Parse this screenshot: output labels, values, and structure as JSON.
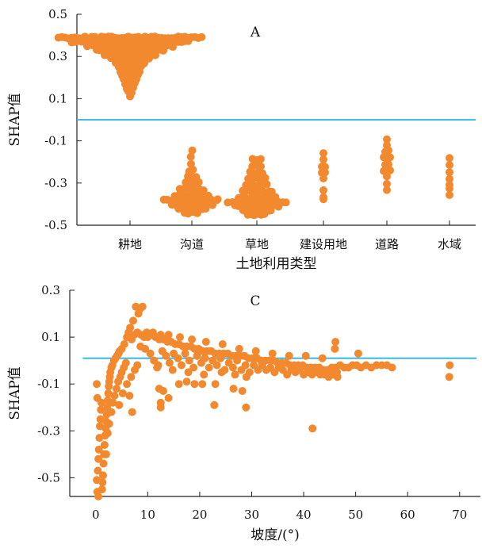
{
  "colors": {
    "points": "#F2892F",
    "reference_line": "#29B3E6",
    "axis": "#222222"
  },
  "chart_data": [
    {
      "type": "scatter",
      "panel_label": "A",
      "title": "",
      "xlabel": "土地利用类型",
      "ylabel": "SHAP值",
      "categories": [
        "耕地",
        "沟道",
        "草地",
        "建设用地",
        "道路",
        "水域"
      ],
      "yticks": [
        "0.5",
        "0.3",
        "0.1",
        "-0.1",
        "-0.3",
        "-0.5"
      ],
      "ylim": [
        -0.5,
        0.5
      ],
      "reference_line_y": 0.0,
      "grid": false,
      "series": [
        {
          "category": "耕地",
          "x_spread": 1.0,
          "y_range": [
            0.1,
            0.39
          ],
          "points": [
            [
              0.39,
              44
            ],
            [
              0.37,
              36
            ],
            [
              0.35,
              28
            ],
            [
              0.33,
              22
            ],
            [
              0.31,
              17
            ],
            [
              0.29,
              13
            ],
            [
              0.27,
              10
            ],
            [
              0.25,
              8
            ],
            [
              0.23,
              7
            ],
            [
              0.21,
              6
            ],
            [
              0.19,
              5
            ],
            [
              0.17,
              4
            ],
            [
              0.15,
              3
            ],
            [
              0.13,
              2
            ],
            [
              0.11,
              1
            ]
          ]
        },
        {
          "category": "沟道",
          "x_spread": 0.5,
          "y_range": [
            -0.45,
            -0.14
          ],
          "points": [
            [
              -0.15,
              1
            ],
            [
              -0.18,
              1
            ],
            [
              -0.21,
              1
            ],
            [
              -0.24,
              2
            ],
            [
              -0.27,
              3
            ],
            [
              -0.3,
              5
            ],
            [
              -0.33,
              8
            ],
            [
              -0.36,
              12
            ],
            [
              -0.38,
              18
            ],
            [
              -0.4,
              14
            ],
            [
              -0.42,
              9
            ],
            [
              -0.44,
              5
            ]
          ]
        },
        {
          "category": "草地",
          "x_spread": 0.55,
          "y_range": [
            -0.45,
            -0.19
          ],
          "points": [
            [
              -0.19,
              3
            ],
            [
              -0.22,
              4
            ],
            [
              -0.25,
              5
            ],
            [
              -0.28,
              6
            ],
            [
              -0.31,
              8
            ],
            [
              -0.34,
              10
            ],
            [
              -0.37,
              13
            ],
            [
              -0.39,
              19
            ],
            [
              -0.41,
              14
            ],
            [
              -0.43,
              10
            ],
            [
              -0.45,
              6
            ]
          ]
        },
        {
          "category": "建设用地",
          "x_spread": 0.1,
          "y_range": [
            -0.38,
            -0.16
          ],
          "points": [
            [
              -0.16,
              1
            ],
            [
              -0.19,
              1
            ],
            [
              -0.22,
              2
            ],
            [
              -0.25,
              2
            ],
            [
              -0.28,
              1
            ],
            [
              -0.33,
              1
            ],
            [
              -0.37,
              1
            ],
            [
              -0.38,
              1
            ]
          ]
        },
        {
          "category": "道路",
          "x_spread": 0.28,
          "y_range": [
            -0.34,
            -0.09
          ],
          "points": [
            [
              -0.09,
              1
            ],
            [
              -0.12,
              1
            ],
            [
              -0.15,
              2
            ],
            [
              -0.18,
              3
            ],
            [
              -0.21,
              2
            ],
            [
              -0.24,
              3
            ],
            [
              -0.27,
              1
            ],
            [
              -0.3,
              1
            ],
            [
              -0.33,
              1
            ]
          ]
        },
        {
          "category": "水域",
          "x_spread": 0.1,
          "y_range": [
            -0.36,
            -0.18
          ],
          "points": [
            [
              -0.18,
              1
            ],
            [
              -0.21,
              1
            ],
            [
              -0.25,
              1
            ],
            [
              -0.28,
              1
            ],
            [
              -0.31,
              1
            ],
            [
              -0.33,
              1
            ],
            [
              -0.36,
              1
            ]
          ]
        }
      ]
    },
    {
      "type": "scatter",
      "panel_label": "C",
      "title": "",
      "xlabel": "坡度/(°)",
      "ylabel": "SHAP值",
      "xlim": [
        -5,
        74
      ],
      "ylim": [
        -0.58,
        0.3
      ],
      "xticks": [
        "0",
        "10",
        "20",
        "30",
        "40",
        "50",
        "60",
        "70"
      ],
      "yticks": [
        "0.3",
        "0.1",
        "-0.1",
        "-0.3",
        "-0.5"
      ],
      "reference_line_y": 0.01,
      "grid": false,
      "points": [
        [
          0.2,
          -0.51
        ],
        [
          0.4,
          -0.47
        ],
        [
          0.5,
          -0.42
        ],
        [
          0.6,
          -0.38
        ],
        [
          0.7,
          -0.33
        ],
        [
          0.8,
          -0.28
        ],
        [
          0.9,
          -0.25
        ],
        [
          1.0,
          -0.21
        ],
        [
          1.1,
          -0.18
        ],
        [
          1.2,
          -0.55
        ],
        [
          1.3,
          -0.52
        ],
        [
          1.4,
          -0.49
        ],
        [
          1.5,
          -0.44
        ],
        [
          1.6,
          -0.4
        ],
        [
          1.7,
          -0.36
        ],
        [
          1.8,
          -0.32
        ],
        [
          1.9,
          -0.29
        ],
        [
          2.0,
          -0.26
        ],
        [
          2.1,
          -0.23
        ],
        [
          2.2,
          -0.2
        ],
        [
          2.3,
          -0.17
        ],
        [
          2.4,
          -0.14
        ],
        [
          2.5,
          -0.11
        ],
        [
          2.6,
          -0.09
        ],
        [
          2.7,
          -0.07
        ],
        [
          2.8,
          -0.05
        ],
        [
          3.0,
          -0.03
        ],
        [
          3.2,
          -0.02
        ],
        [
          3.5,
          0.0
        ],
        [
          3.8,
          0.01
        ],
        [
          4.1,
          0.02
        ],
        [
          4.4,
          0.03
        ],
        [
          0.2,
          -0.1
        ],
        [
          0.3,
          -0.16
        ],
        [
          0.5,
          -0.58
        ],
        [
          0.3,
          -0.56
        ],
        [
          2.0,
          -0.4
        ],
        [
          2.3,
          -0.31
        ],
        [
          2.6,
          -0.27
        ],
        [
          3.0,
          -0.22
        ],
        [
          3.3,
          -0.18
        ],
        [
          3.6,
          -0.15
        ],
        [
          4.0,
          -0.12
        ],
        [
          4.3,
          -0.09
        ],
        [
          4.7,
          -0.07
        ],
        [
          5.0,
          -0.05
        ],
        [
          5.4,
          -0.03
        ],
        [
          5.8,
          -0.01
        ],
        [
          4.5,
          -0.19
        ],
        [
          5.2,
          -0.14
        ],
        [
          6.0,
          -0.1
        ],
        [
          6.5,
          -0.15
        ],
        [
          7.0,
          -0.22
        ],
        [
          6.8,
          -0.07
        ],
        [
          7.5,
          -0.04
        ],
        [
          8.0,
          -0.02
        ],
        [
          7.7,
          0.23
        ],
        [
          8.5,
          0.22
        ],
        [
          9.0,
          0.23
        ],
        [
          8.2,
          0.2
        ],
        [
          7.2,
          0.17
        ],
        [
          6.6,
          0.14
        ],
        [
          6.3,
          0.12
        ],
        [
          6.0,
          0.1
        ],
        [
          5.5,
          0.07
        ],
        [
          5.0,
          0.05
        ],
        [
          4.6,
          0.04
        ],
        [
          6.9,
          0.09
        ],
        [
          7.4,
          0.11
        ],
        [
          8.0,
          0.12
        ],
        [
          8.7,
          0.11
        ],
        [
          9.3,
          0.1
        ],
        [
          10.0,
          0.1
        ],
        [
          10.8,
          0.11
        ],
        [
          11.5,
          0.1
        ],
        [
          12.2,
          0.09
        ],
        [
          13.0,
          0.09
        ],
        [
          13.8,
          0.08
        ],
        [
          14.5,
          0.08
        ],
        [
          15.3,
          0.07
        ],
        [
          16.0,
          0.07
        ],
        [
          16.8,
          0.06
        ],
        [
          17.5,
          0.06
        ],
        [
          18.3,
          0.06
        ],
        [
          19.0,
          0.05
        ],
        [
          19.8,
          0.05
        ],
        [
          20.6,
          0.04
        ],
        [
          21.4,
          0.04
        ],
        [
          22.2,
          0.04
        ],
        [
          23.0,
          0.03
        ],
        [
          23.8,
          0.03
        ],
        [
          24.6,
          0.03
        ],
        [
          25.4,
          0.03
        ],
        [
          26.2,
          0.02
        ],
        [
          27.0,
          0.02
        ],
        [
          27.8,
          0.02
        ],
        [
          28.6,
          0.02
        ],
        [
          29.4,
          0.01
        ],
        [
          30.2,
          0.01
        ],
        [
          31.0,
          0.01
        ],
        [
          31.8,
          0.0
        ],
        [
          32.6,
          0.0
        ],
        [
          33.4,
          0.0
        ],
        [
          34.2,
          0.0
        ],
        [
          35.0,
          -0.01
        ],
        [
          35.8,
          -0.01
        ],
        [
          36.6,
          -0.01
        ],
        [
          37.4,
          -0.02
        ],
        [
          38.2,
          -0.02
        ],
        [
          39.0,
          -0.02
        ],
        [
          39.8,
          -0.02
        ],
        [
          40.6,
          -0.03
        ],
        [
          41.4,
          -0.03
        ],
        [
          42.2,
          -0.03
        ],
        [
          43.0,
          -0.03
        ],
        [
          43.8,
          -0.04
        ],
        [
          44.6,
          -0.04
        ],
        [
          45.4,
          -0.03
        ],
        [
          46.2,
          -0.03
        ],
        [
          47.0,
          -0.02
        ],
        [
          47.8,
          -0.03
        ],
        [
          48.6,
          -0.03
        ],
        [
          49.4,
          -0.02
        ],
        [
          50.2,
          -0.02
        ],
        [
          51.0,
          -0.03
        ],
        [
          52.0,
          -0.02
        ],
        [
          53.0,
          -0.03
        ],
        [
          54.0,
          -0.02
        ],
        [
          55.0,
          -0.02
        ],
        [
          56.0,
          -0.02
        ],
        [
          57.0,
          -0.03
        ],
        [
          9.5,
          0.05
        ],
        [
          10.5,
          0.03
        ],
        [
          11.2,
          0.0
        ],
        [
          12.0,
          -0.02
        ],
        [
          12.8,
          0.04
        ],
        [
          13.5,
          0.02
        ],
        [
          14.2,
          -0.01
        ],
        [
          15.0,
          0.03
        ],
        [
          15.8,
          0.01
        ],
        [
          16.5,
          -0.02
        ],
        [
          17.2,
          0.03
        ],
        [
          18.0,
          0.0
        ],
        [
          18.8,
          -0.03
        ],
        [
          19.5,
          0.02
        ],
        [
          20.3,
          -0.01
        ],
        [
          21.0,
          0.01
        ],
        [
          21.8,
          -0.03
        ],
        [
          22.5,
          0.0
        ],
        [
          23.3,
          -0.02
        ],
        [
          24.0,
          0.01
        ],
        [
          24.8,
          -0.04
        ],
        [
          25.6,
          -0.01
        ],
        [
          26.4,
          -0.03
        ],
        [
          27.2,
          0.0
        ],
        [
          28.0,
          -0.04
        ],
        [
          28.8,
          -0.02
        ],
        [
          29.6,
          -0.05
        ],
        [
          30.4,
          -0.02
        ],
        [
          31.2,
          -0.04
        ],
        [
          32.0,
          -0.02
        ],
        [
          32.8,
          -0.04
        ],
        [
          33.6,
          -0.03
        ],
        [
          34.4,
          -0.05
        ],
        [
          35.2,
          -0.03
        ],
        [
          36.0,
          -0.04
        ],
        [
          36.8,
          -0.06
        ],
        [
          37.6,
          -0.04
        ],
        [
          38.4,
          -0.05
        ],
        [
          39.2,
          -0.04
        ],
        [
          40.0,
          -0.06
        ],
        [
          40.8,
          -0.05
        ],
        [
          41.6,
          -0.06
        ],
        [
          42.4,
          -0.05
        ],
        [
          43.2,
          -0.06
        ],
        [
          44.0,
          -0.06
        ],
        [
          44.8,
          -0.07
        ],
        [
          45.6,
          -0.06
        ],
        [
          46.4,
          -0.05
        ],
        [
          11.8,
          -0.03
        ],
        [
          14.8,
          -0.04
        ],
        [
          17.8,
          -0.05
        ],
        [
          20.8,
          -0.06
        ],
        [
          24.2,
          -0.05
        ],
        [
          26.8,
          -0.06
        ],
        [
          29.0,
          -0.07
        ],
        [
          8.6,
          0.06
        ],
        [
          9.8,
          0.12
        ],
        [
          11.0,
          0.12
        ],
        [
          12.5,
          0.11
        ],
        [
          14.0,
          0.11
        ],
        [
          16.2,
          0.1
        ],
        [
          18.5,
          0.09
        ],
        [
          21.2,
          0.08
        ],
        [
          24.4,
          0.07
        ],
        [
          27.6,
          0.05
        ],
        [
          30.8,
          0.04
        ],
        [
          34.0,
          0.03
        ],
        [
          37.2,
          0.02
        ],
        [
          40.4,
          0.02
        ],
        [
          43.6,
          0.01
        ],
        [
          46.0,
          0.05
        ],
        [
          46.1,
          0.08
        ],
        [
          50.5,
          0.03
        ],
        [
          16.0,
          -0.1
        ],
        [
          17.5,
          -0.09
        ],
        [
          19.0,
          -0.1
        ],
        [
          20.5,
          -0.1
        ],
        [
          13.0,
          -0.13
        ],
        [
          12.2,
          -0.12
        ],
        [
          14.0,
          -0.16
        ],
        [
          23.0,
          -0.1
        ],
        [
          22.8,
          -0.19
        ],
        [
          26.5,
          -0.12
        ],
        [
          28.2,
          -0.13
        ],
        [
          28.9,
          -0.2
        ],
        [
          12.5,
          -0.18
        ],
        [
          12.5,
          -0.2
        ],
        [
          41.7,
          -0.29
        ],
        [
          46.5,
          -0.07
        ],
        [
          68.0,
          -0.07
        ],
        [
          68.1,
          -0.02
        ]
      ]
    }
  ]
}
